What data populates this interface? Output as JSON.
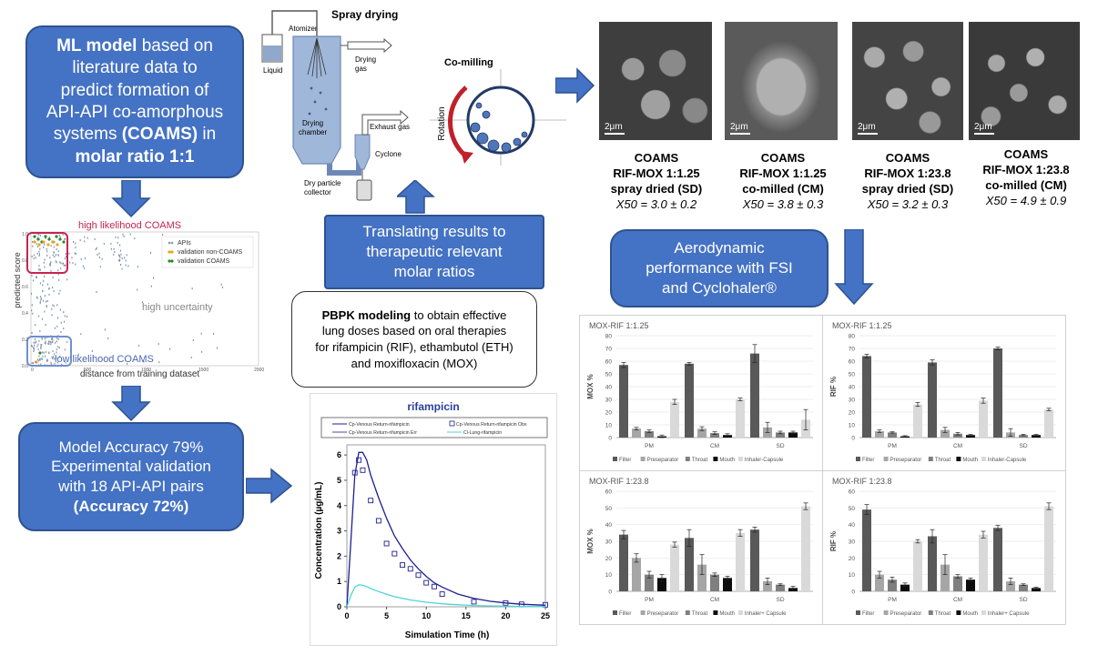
{
  "ml_box": {
    "bold1": "ML model",
    "line1": " based on",
    "line2": "literature data to",
    "line3": "predict formation of",
    "line4": "API-API co-amorphous",
    "line5a": "systems ",
    "line5b": "(COAMS)",
    "line5c": " in",
    "line6": "molar ratio 1:1"
  },
  "accuracy_box": {
    "line1": "Model Accuracy 79%",
    "line2": "Experimental validation",
    "line3": "with 18 API-API pairs",
    "line4": "(Accuracy 72%)"
  },
  "translate_box": {
    "line1": "Translating results to",
    "line2": "therapeutic relevant",
    "line3": "molar ratios"
  },
  "pbpk_box": {
    "bold": "PBPK modeling",
    "line1": " to obtain effective",
    "line2": "lung doses based on oral therapies",
    "line3": "for rifampicin (RIF), ethambutol (ETH)",
    "line4": "and moxifloxacin (MOX)"
  },
  "aero_box": {
    "line1": "Aerodynamic",
    "line2": "performance with FSI",
    "line3": "and Cyclohaler®"
  },
  "spray": {
    "title": "Spray drying",
    "atomizer": "Atomizer",
    "liquid": "Liquid",
    "drying_gas": "Drying",
    "drying_gas2": "gas",
    "chamber": "Drying",
    "chamber2": "chamber",
    "exhaust": "Exhaust gas",
    "cyclone": "Cyclone",
    "collector": "Dry particle",
    "collector2": "collector"
  },
  "comill": {
    "title": "Co-milling",
    "rotation": "Rotation"
  },
  "sem": [
    {
      "scale": "2μm",
      "l1": "COAMS",
      "l2": "RIF-MOX 1:1.25",
      "l3": "spray dried (SD)",
      "x50": "X50 = 3.0 ± 0.2"
    },
    {
      "scale": "2μm",
      "l1": "COAMS",
      "l2": "RIF-MOX 1:1.25",
      "l3": "co-milled (CM)",
      "x50": "X50 = 3.8 ± 0.3"
    },
    {
      "scale": "2μm",
      "l1": "COAMS",
      "l2": "RIF-MOX 1:23.8",
      "l3": "spray dried (SD)",
      "x50": "X50 = 3.2 ± 0.3"
    },
    {
      "scale": "2μm",
      "l1": "COAMS",
      "l2": "RIF-MOX 1:23.8",
      "l3": "co-milled (CM)",
      "x50": "X50 = 4.9 ±  0.9"
    }
  ],
  "scatter": {
    "high": "high likelihood COAMS",
    "low": "low likelihood COAMS",
    "uncertain": "high uncertainty",
    "ylabel": "predicted score",
    "xlabel": "distance from training dataset",
    "legend": [
      "APIs",
      "validation non-COAMS",
      "validation COAMS"
    ],
    "xticks": [
      "0",
      "500",
      "1000",
      "1500",
      "2000"
    ],
    "yticks": [
      "1.0",
      "0.8",
      "0.6",
      "0.4",
      "0.2",
      "0.0"
    ]
  },
  "chart_data": [
    {
      "type": "line",
      "title": "rifampicin",
      "xlabel": "Simulation Time (h)",
      "ylabel": "Concentration (µg/mL)",
      "xlim": [
        0,
        25
      ],
      "ylim": [
        0,
        6.4
      ],
      "xticks": [
        "0",
        "5",
        "10",
        "15",
        "20",
        "25"
      ],
      "yticks": [
        "0",
        "1",
        "2",
        "3",
        "4",
        "5",
        "6"
      ],
      "legend": [
        "Cp-Venous Return-rifampicin",
        "Cp-Venous Return-rifampicin Obs",
        "Cp-Venous Return-rifampicin Err",
        "Cl-Lung-rifampicin"
      ],
      "series": [
        {
          "name": "Cp-Venous Return-rifampicin",
          "color": "#1f1f8f",
          "x": [
            0,
            0.5,
            1,
            1.5,
            2,
            2.5,
            3,
            4,
            5,
            6,
            7,
            8,
            9,
            10,
            11,
            12,
            14,
            16,
            18,
            20,
            22,
            25
          ],
          "y": [
            0,
            2.6,
            5.2,
            6.1,
            6.1,
            5.8,
            5.2,
            4.3,
            3.5,
            2.8,
            2.3,
            1.85,
            1.5,
            1.2,
            0.95,
            0.78,
            0.5,
            0.33,
            0.22,
            0.15,
            0.1,
            0.06
          ]
        },
        {
          "name": "Cp-Venous Return-rifampicin Obs",
          "color": "#1f1f8f",
          "marker": "square",
          "x": [
            1,
            1.5,
            2,
            3,
            4,
            5,
            6,
            7,
            8,
            9,
            10,
            11,
            12,
            16,
            20,
            22,
            25
          ],
          "y": [
            5.3,
            5.8,
            5.4,
            4.2,
            3.4,
            2.5,
            2.1,
            1.65,
            1.5,
            1.25,
            0.95,
            0.8,
            0.5,
            0.2,
            0.15,
            0.1,
            0.08
          ]
        },
        {
          "name": "Cl-Lung-rifampicin",
          "color": "#4fd6d6",
          "x": [
            0,
            0.5,
            1,
            1.5,
            2,
            2.5,
            3,
            4,
            5,
            6,
            8,
            10,
            12,
            14,
            16,
            18,
            20,
            22,
            25
          ],
          "y": [
            0,
            0.45,
            0.78,
            0.87,
            0.85,
            0.8,
            0.72,
            0.6,
            0.5,
            0.4,
            0.27,
            0.18,
            0.12,
            0.08,
            0.05,
            0.035,
            0.025,
            0.015,
            0.01
          ]
        }
      ]
    },
    {
      "type": "bar",
      "title": "MOX-RIF 1:1.25",
      "ylabel": "MOX %",
      "ylim": [
        0,
        80
      ],
      "yticks": [
        "0",
        "10",
        "20",
        "30",
        "40",
        "50",
        "60",
        "70",
        "80"
      ],
      "categories": [
        "PM",
        "CM",
        "SD"
      ],
      "series": [
        {
          "name": "Filter",
          "color": "#595959",
          "values": [
            57,
            58,
            66
          ],
          "err": [
            2,
            1,
            7
          ]
        },
        {
          "name": "Preseparator",
          "color": "#a6a6a6",
          "values": [
            7,
            7,
            8
          ],
          "err": [
            1,
            1.5,
            4
          ]
        },
        {
          "name": "Throat",
          "color": "#7f7f7f",
          "values": [
            5,
            3.5,
            4
          ],
          "err": [
            1,
            1,
            1
          ]
        },
        {
          "name": "Mouth",
          "color": "#0d0d0d",
          "values": [
            1,
            2,
            4
          ],
          "err": [
            1,
            1,
            1
          ]
        },
        {
          "name": "Inhaler-Capsule",
          "color": "#d9d9d9",
          "values": [
            28,
            30,
            14
          ],
          "err": [
            2,
            1,
            8
          ]
        }
      ]
    },
    {
      "type": "bar",
      "title": "MOX-RIF 1:1.25",
      "ylabel": "RIF %",
      "ylim": [
        0,
        80
      ],
      "yticks": [
        "0",
        "10",
        "20",
        "30",
        "40",
        "50",
        "60",
        "70",
        "80"
      ],
      "categories": [
        "PM",
        "CM",
        "SD"
      ],
      "series": [
        {
          "name": "Filter",
          "color": "#595959",
          "values": [
            64,
            59,
            70
          ],
          "err": [
            1.5,
            2,
            1
          ]
        },
        {
          "name": "Preseparator",
          "color": "#a6a6a6",
          "values": [
            5,
            6,
            4
          ],
          "err": [
            1,
            2,
            3
          ]
        },
        {
          "name": "Throat",
          "color": "#7f7f7f",
          "values": [
            4,
            3,
            2
          ],
          "err": [
            0.5,
            1,
            0.5
          ]
        },
        {
          "name": "Mouth",
          "color": "#0d0d0d",
          "values": [
            1,
            2,
            2
          ],
          "err": [
            0.5,
            0.5,
            0.5
          ]
        },
        {
          "name": "Inhaler-Capsule",
          "color": "#d9d9d9",
          "values": [
            26,
            29,
            22
          ],
          "err": [
            1.5,
            2,
            1
          ]
        }
      ]
    },
    {
      "type": "bar",
      "title": "MOX-RIF 1:23.8",
      "ylabel": "MOX %",
      "ylim": [
        0,
        60
      ],
      "yticks": [
        "0",
        "10",
        "20",
        "30",
        "40",
        "50",
        "60"
      ],
      "categories": [
        "PM",
        "CM",
        "SD"
      ],
      "series": [
        {
          "name": "Filter",
          "color": "#595959",
          "values": [
            34,
            32,
            37
          ],
          "err": [
            2.5,
            5,
            1.5
          ]
        },
        {
          "name": "Preseparator",
          "color": "#a6a6a6",
          "values": [
            20,
            16,
            6
          ],
          "err": [
            2.5,
            6,
            2
          ]
        },
        {
          "name": "Throat",
          "color": "#7f7f7f",
          "values": [
            10,
            10,
            4
          ],
          "err": [
            2,
            1,
            0.5
          ]
        },
        {
          "name": "Mouth",
          "color": "#0d0d0d",
          "values": [
            8,
            8,
            2
          ],
          "err": [
            2,
            1,
            1
          ]
        },
        {
          "name": "Inhaler+ Capsule",
          "color": "#d9d9d9",
          "values": [
            28,
            35,
            51
          ],
          "err": [
            1.5,
            2,
            2
          ]
        }
      ]
    },
    {
      "type": "bar",
      "title": "MOX-RIF 1:23.8",
      "ylabel": "RIF %",
      "ylim": [
        0,
        60
      ],
      "yticks": [
        "0",
        "10",
        "20",
        "30",
        "40",
        "50",
        "60"
      ],
      "categories": [
        "PM",
        "CM",
        "SD"
      ],
      "series": [
        {
          "name": "Filter",
          "color": "#595959",
          "values": [
            49,
            33,
            38
          ],
          "err": [
            3,
            4,
            1.5
          ]
        },
        {
          "name": "Preseparator",
          "color": "#a6a6a6",
          "values": [
            10,
            16,
            6
          ],
          "err": [
            2,
            6,
            2
          ]
        },
        {
          "name": "Throat",
          "color": "#7f7f7f",
          "values": [
            7,
            9,
            4
          ],
          "err": [
            1.5,
            1,
            0.5
          ]
        },
        {
          "name": "Mouth",
          "color": "#0d0d0d",
          "values": [
            4,
            7,
            2
          ],
          "err": [
            1,
            1,
            0.5
          ]
        },
        {
          "name": "Inhaler+ Capsule",
          "color": "#d9d9d9",
          "values": [
            30,
            34,
            51
          ],
          "err": [
            1,
            2,
            2
          ]
        }
      ]
    }
  ]
}
